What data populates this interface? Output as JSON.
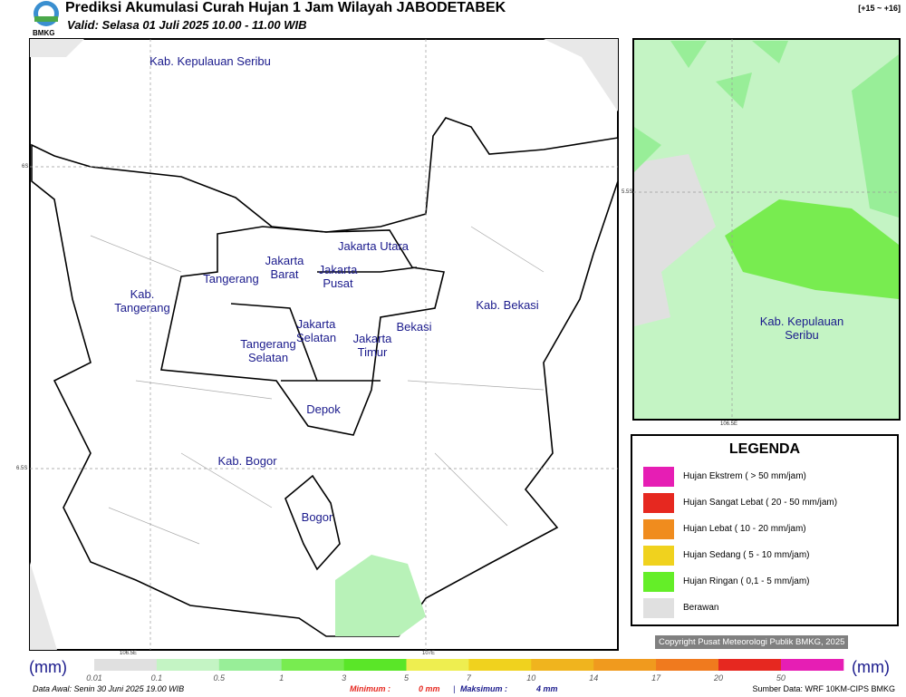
{
  "header": {
    "title": "Prediksi Akumulasi Curah Hujan 1 Jam Wilayah JABODETABEK",
    "subtitle": "Valid: Selasa 01 Juli 2025 10.00 - 11.00 WIB",
    "logo_text": "BMKG",
    "lead_time": "[+15 ~ +16]"
  },
  "map": {
    "labels": [
      "Kab. Kepulauan Seribu",
      "Jakarta Utara",
      "Jakarta Barat",
      "Jakarta Pusat",
      "Tangerang",
      "Kab. Tangerang",
      "Kab. Bekasi",
      "Bekasi",
      "Jakarta Selatan",
      "Jakarta Timur",
      "Tangerang Selatan",
      "Depok",
      "Kab. Bogor",
      "Bogor"
    ],
    "grid_labels": [
      "6S",
      "6.5S",
      "106.5E",
      "107E"
    ]
  },
  "inset": {
    "label": "Kab. Kepulauan Seribu",
    "grid_labels": [
      "5.5S",
      "106.5E"
    ]
  },
  "legend": {
    "title": "LEGENDA",
    "items": [
      {
        "label": "Hujan Ekstrem ( > 50 mm/jam)",
        "color": "#e61eb4"
      },
      {
        "label": "Hujan Sangat Lebat ( 20 - 50 mm/jam)",
        "color": "#e62820"
      },
      {
        "label": "Hujan Lebat ( 10 - 20 mm/jam)",
        "color": "#f08c1e"
      },
      {
        "label": "Hujan Sedang ( 5 - 10 mm/jam)",
        "color": "#f0d21e"
      },
      {
        "label": "Hujan Ringan ( 0,1 - 5 mm/jam)",
        "color": "#64ee28"
      },
      {
        "label": "Berawan",
        "color": "#e0e0e0"
      }
    ]
  },
  "copyright": "Copyright Pusat Meteorologi Publik BMKG, 2025",
  "colorbar": {
    "unit": "(mm)",
    "ticks": [
      0.01,
      0.1,
      0.5,
      1,
      3,
      5,
      7,
      10,
      14,
      17,
      20,
      50
    ],
    "colors": [
      "#e0e0e0",
      "#c4f4c4",
      "#98ee98",
      "#78ec50",
      "#5ae628",
      "#eeee50",
      "#f0d21e",
      "#f0b41e",
      "#f09a1e",
      "#f07a1e",
      "#e62820",
      "#e61eb4"
    ]
  },
  "footer": {
    "data_awal": "Data Awal: Senin 30 Juni 2025 19.00 WIB",
    "minimum_label": "Minimum :",
    "minimum_value": "0 mm",
    "separator": "|",
    "maksimum_label": "Maksimum :",
    "maksimum_value": "4 mm",
    "source": "Sumber Data: WRF 10KM-CIPS BMKG"
  }
}
